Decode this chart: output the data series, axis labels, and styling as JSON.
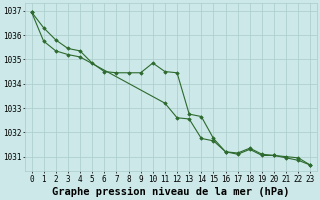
{
  "title": "Graphe pression niveau de la mer (hPa)",
  "color": "#2d6a2d",
  "bg_color": "#cce8e8",
  "grid_color": "#aacccc",
  "ylim": [
    1030.4,
    1037.3
  ],
  "xlim": [
    -0.5,
    23.5
  ],
  "yticks": [
    1031,
    1032,
    1033,
    1034,
    1035,
    1036,
    1037
  ],
  "xticks": [
    0,
    1,
    2,
    3,
    4,
    5,
    6,
    7,
    8,
    9,
    10,
    11,
    12,
    13,
    14,
    15,
    16,
    17,
    18,
    19,
    20,
    21,
    22,
    23
  ],
  "tick_fontsize": 5.5,
  "title_fontsize": 7.5,
  "series1_x": [
    0,
    1,
    2,
    3,
    4,
    5,
    6,
    7,
    8,
    9,
    10,
    11,
    12,
    13,
    14,
    15,
    16,
    17,
    18,
    19,
    20,
    21,
    22,
    23
  ],
  "series1_y": [
    1036.95,
    1036.3,
    1035.8,
    1035.45,
    1035.35,
    1034.85,
    1034.5,
    1034.45,
    1034.45,
    1034.45,
    1034.85,
    1034.5,
    1034.45,
    1032.75,
    1032.65,
    1031.75,
    1031.2,
    1031.1,
    1031.3,
    1031.05,
    1031.05,
    1030.95,
    1030.85,
    1030.65
  ],
  "series2_x": [
    0,
    1,
    2,
    3,
    4,
    11,
    12,
    13,
    14,
    15,
    16,
    17,
    18,
    19,
    20,
    21,
    22,
    23
  ],
  "series2_y": [
    1036.95,
    1035.75,
    1035.35,
    1035.2,
    1035.1,
    1033.2,
    1032.6,
    1032.55,
    1031.75,
    1031.65,
    1031.2,
    1031.15,
    1031.35,
    1031.1,
    1031.05,
    1031.0,
    1030.95,
    1030.65
  ]
}
